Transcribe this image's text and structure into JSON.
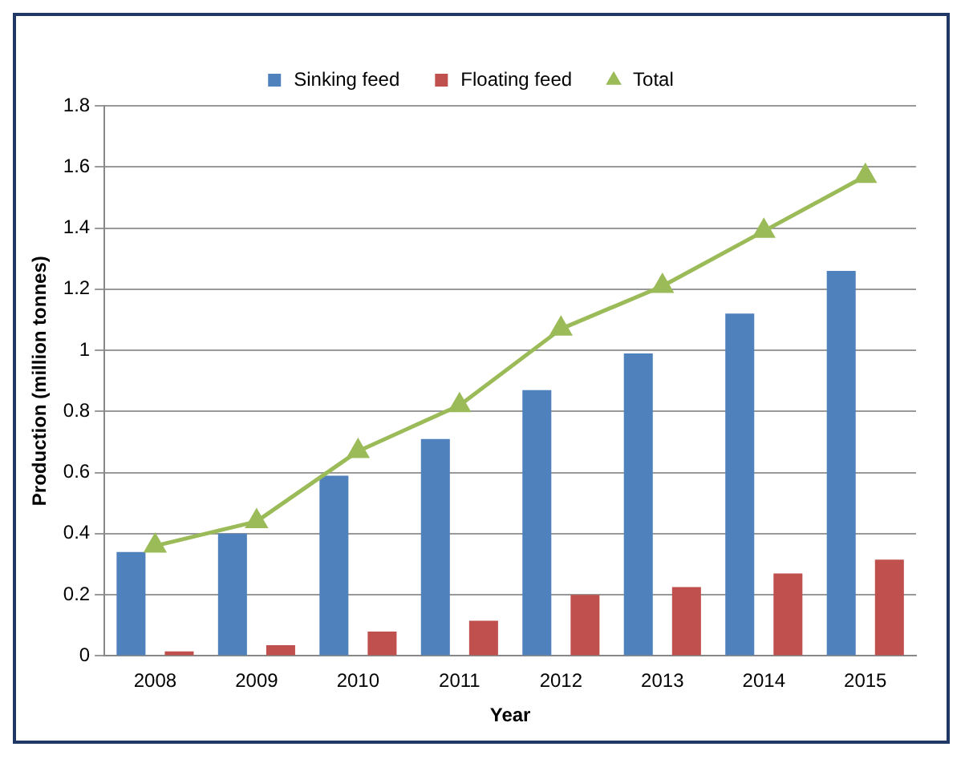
{
  "chart_data": {
    "type": "bar",
    "xlabel": "Year",
    "ylabel": "Production (million tonnes)",
    "categories": [
      "2008",
      "2009",
      "2010",
      "2011",
      "2012",
      "2013",
      "2014",
      "2015"
    ],
    "series": [
      {
        "name": "Sinking feed",
        "color": "#4f81bd",
        "values": [
          0.34,
          0.4,
          0.59,
          0.71,
          0.87,
          0.99,
          1.12,
          1.26
        ]
      },
      {
        "name": "Floating feed",
        "color": "#c0504d",
        "values": [
          0.015,
          0.035,
          0.08,
          0.115,
          0.2,
          0.225,
          0.27,
          0.315
        ]
      },
      {
        "name": "Total",
        "type": "line",
        "color": "#9bbb59",
        "marker": "triangle",
        "values": [
          0.36,
          0.44,
          0.67,
          0.82,
          1.07,
          1.21,
          1.39,
          1.57
        ]
      }
    ],
    "ylim": [
      0,
      1.8
    ],
    "yticks": [
      0,
      0.2,
      0.4,
      0.6,
      0.8,
      1,
      1.2,
      1.4,
      1.6,
      1.8
    ],
    "grid": "y",
    "legend": "top"
  }
}
